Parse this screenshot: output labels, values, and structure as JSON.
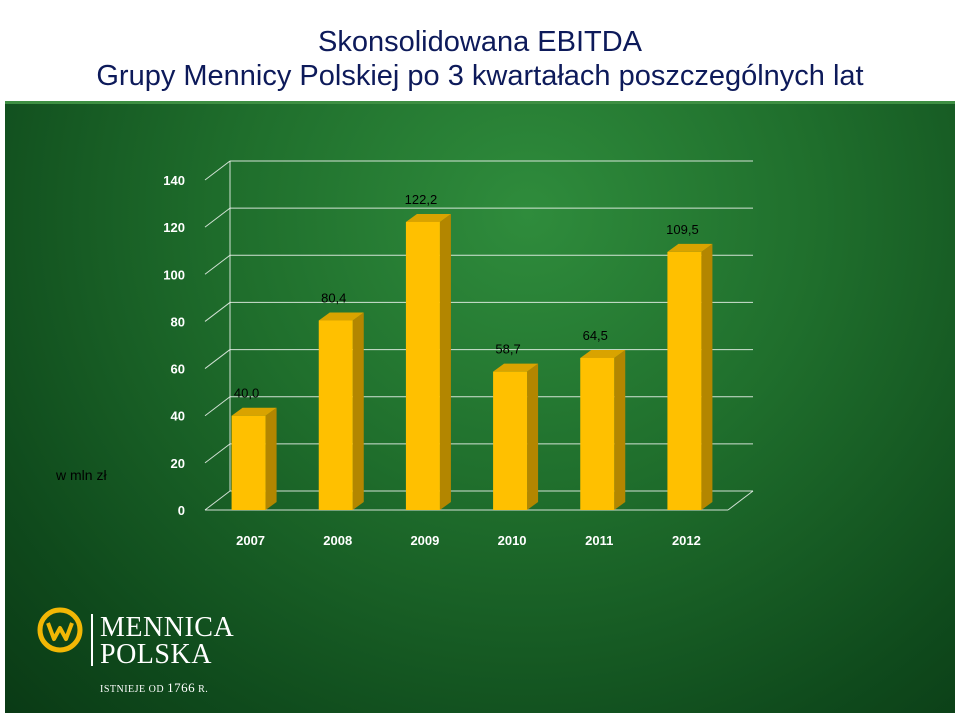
{
  "title": {
    "line1": "Skonsolidowana EBITDA",
    "line2": "Grupy Mennicy Polskiej po 3 kwartałach poszczególnych lat"
  },
  "unit_label": "w mln zł",
  "brand": {
    "line1": "MENNICA",
    "line2": "POLSKA",
    "since_prefix": "ISTNIEJE OD",
    "since_year": "1766",
    "since_suffix": "R."
  },
  "colors": {
    "bar_front": "#ffc000",
    "bar_side": "#b38600",
    "bar_top": "#d9a300",
    "axis_text": "#ffffff",
    "label_text": "#000000"
  },
  "chart_data": {
    "type": "bar",
    "categories": [
      "2007",
      "2008",
      "2009",
      "2010",
      "2011",
      "2012"
    ],
    "values": [
      40.0,
      80.4,
      122.2,
      58.7,
      64.5,
      109.5
    ],
    "value_labels": [
      "40,0",
      "80,4",
      "122,2",
      "58,7",
      "64,5",
      "109,5"
    ],
    "y_ticks": [
      0,
      20,
      40,
      60,
      80,
      100,
      120,
      140
    ],
    "ylim": [
      0,
      140
    ],
    "grid": true,
    "style": "3d-column"
  }
}
